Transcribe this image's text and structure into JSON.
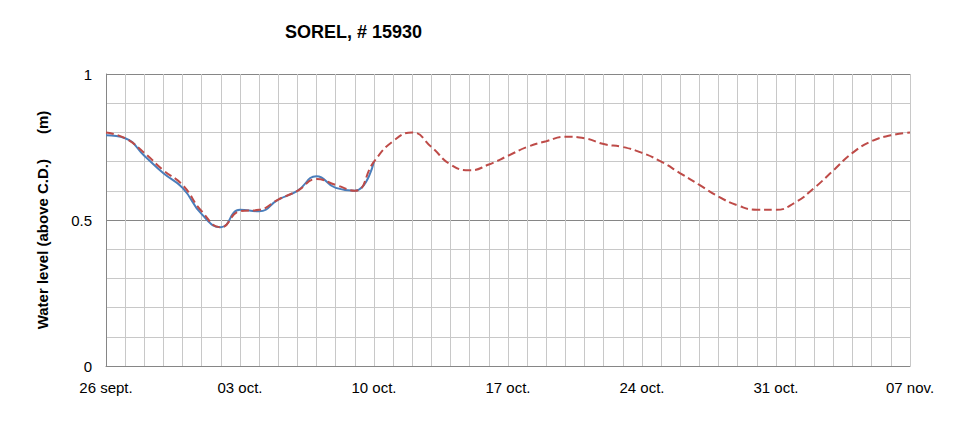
{
  "chart_data": {
    "type": "line",
    "title": "SOREL, # 15930",
    "ylabel": "Water level (above C.D.)      (m)",
    "categories": [
      "26 sept.",
      null,
      null,
      null,
      null,
      null,
      null,
      "03 oct.",
      null,
      null,
      null,
      null,
      null,
      null,
      "10 oct.",
      null,
      null,
      null,
      null,
      null,
      null,
      "17 oct.",
      null,
      null,
      null,
      null,
      null,
      null,
      "24 oct.",
      null,
      null,
      null,
      null,
      null,
      null,
      "31 oct.",
      null,
      null,
      null,
      null,
      null,
      null,
      "07 nov."
    ],
    "series": [
      {
        "color": "#4a7ebb",
        "line_style": "solid",
        "values": [
          0.79,
          0.78,
          0.72,
          0.66,
          0.61,
          0.52,
          0.475,
          0.535,
          0.53,
          0.57,
          0.6,
          0.65,
          0.61,
          0.6,
          0.7,
          null,
          null,
          null,
          null,
          null,
          null,
          null,
          null,
          null,
          null,
          null,
          null,
          null,
          null,
          null,
          null,
          null,
          null,
          null,
          null,
          null,
          null,
          null,
          null,
          null,
          null,
          null,
          null
        ]
      },
      {
        "color": "#be4b48",
        "line_style": "dashed",
        "values": [
          0.8,
          0.78,
          0.73,
          0.67,
          0.62,
          0.53,
          0.475,
          0.53,
          0.535,
          0.57,
          0.6,
          0.64,
          0.62,
          0.6,
          0.7,
          0.77,
          0.8,
          0.75,
          0.69,
          0.67,
          0.69,
          0.72,
          0.75,
          0.77,
          0.785,
          0.78,
          0.76,
          0.75,
          0.73,
          0.7,
          0.66,
          0.62,
          0.58,
          0.55,
          0.535,
          0.535,
          0.56,
          0.61,
          0.67,
          0.73,
          0.77,
          0.79,
          0.8
        ]
      }
    ],
    "ylim": [
      0,
      1
    ],
    "yticks": [
      0,
      0.5,
      1
    ],
    "grid": true
  }
}
